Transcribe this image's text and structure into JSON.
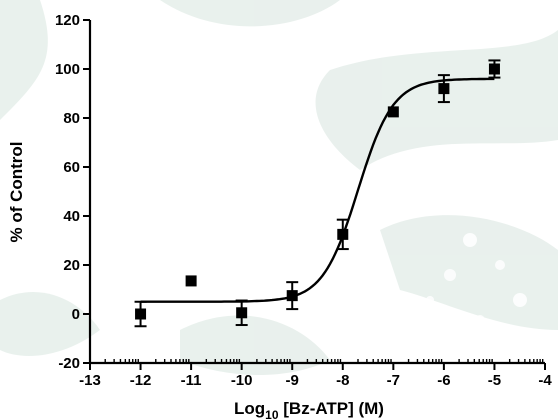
{
  "chart_data": {
    "type": "scatter",
    "xlabel_main": "Log",
    "xlabel_sub": "10",
    "xlabel_rest": " [Bz-ATP] (M)",
    "ylabel": "% of Control",
    "xlim": [
      -13,
      -4
    ],
    "ylim": [
      -20,
      120
    ],
    "x_ticks": [
      -13,
      -12,
      -11,
      -10,
      -9,
      -8,
      -7,
      -6,
      -5,
      -4
    ],
    "y_ticks": [
      -20,
      0,
      20,
      40,
      60,
      80,
      100,
      120
    ],
    "grid": false,
    "points": [
      {
        "x": -12,
        "y": 0,
        "err": 5
      },
      {
        "x": -11,
        "y": 13.5,
        "err": 0
      },
      {
        "x": -10,
        "y": 0.5,
        "err": 5
      },
      {
        "x": -9,
        "y": 7.5,
        "err": 5.5
      },
      {
        "x": -8,
        "y": 32.5,
        "err": 6
      },
      {
        "x": -7,
        "y": 82.5,
        "err": 0
      },
      {
        "x": -6,
        "y": 92,
        "err": 5.5
      },
      {
        "x": -5,
        "y": 100,
        "err": 3.5
      }
    ],
    "fit": {
      "bottom": 5,
      "top": 96,
      "logEC50": -7.7,
      "hill": 1.25
    }
  },
  "colors": {
    "marker": "#000000",
    "curve": "#000000",
    "watermark": "#e2ece7"
  }
}
